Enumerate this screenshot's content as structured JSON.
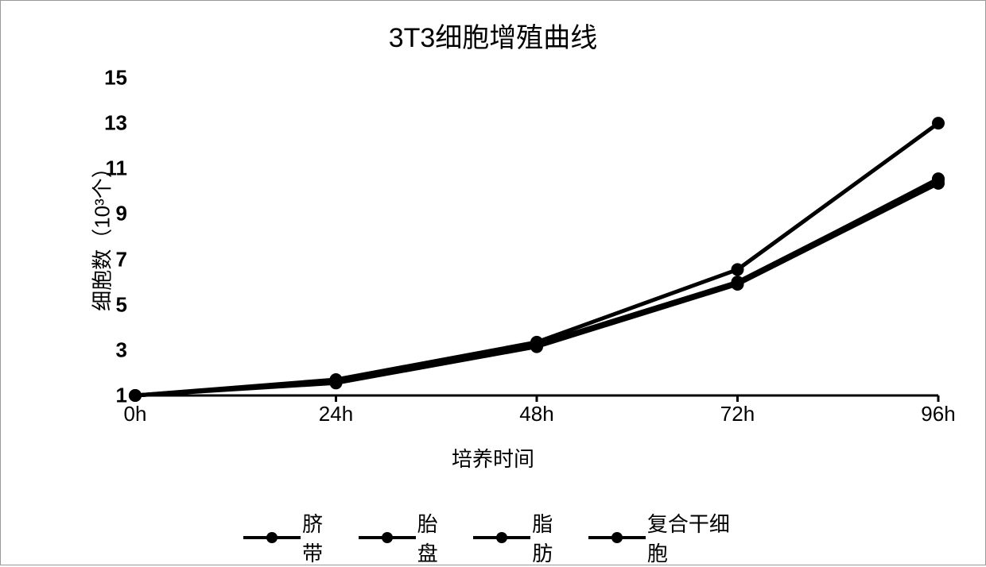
{
  "title": "3T3细胞增殖曲线",
  "chart": {
    "type": "line",
    "xlabel": "培养时间",
    "ylabel": "细胞数（10³个）",
    "x_categories": [
      "0h",
      "24h",
      "48h",
      "72h",
      "96h"
    ],
    "y_ticks": [
      1,
      3,
      5,
      7,
      9,
      11,
      13,
      15
    ],
    "ylim": [
      1,
      15
    ],
    "title_fontsize": 34,
    "label_fontsize": 26,
    "tick_fontsize": 26,
    "background_color": "#ffffff",
    "axis_color": "#000000",
    "axis_width": 3,
    "line_width": 5,
    "marker_size": 8,
    "series": [
      {
        "name": "脐带",
        "color": "#000000",
        "values": [
          1.0,
          1.55,
          3.15,
          5.9,
          10.35
        ]
      },
      {
        "name": "胎盘",
        "color": "#000000",
        "values": [
          1.0,
          1.6,
          3.2,
          5.95,
          10.55
        ]
      },
      {
        "name": "脂肪",
        "color": "#000000",
        "values": [
          1.0,
          1.65,
          3.25,
          6.0,
          10.5
        ]
      },
      {
        "name": "复合干细胞",
        "color": "#000000",
        "values": [
          1.0,
          1.7,
          3.35,
          6.55,
          13.0
        ]
      }
    ]
  },
  "legend": {
    "items": [
      "脐带",
      "胎盘",
      "脂肪",
      "复合干细胞"
    ]
  }
}
